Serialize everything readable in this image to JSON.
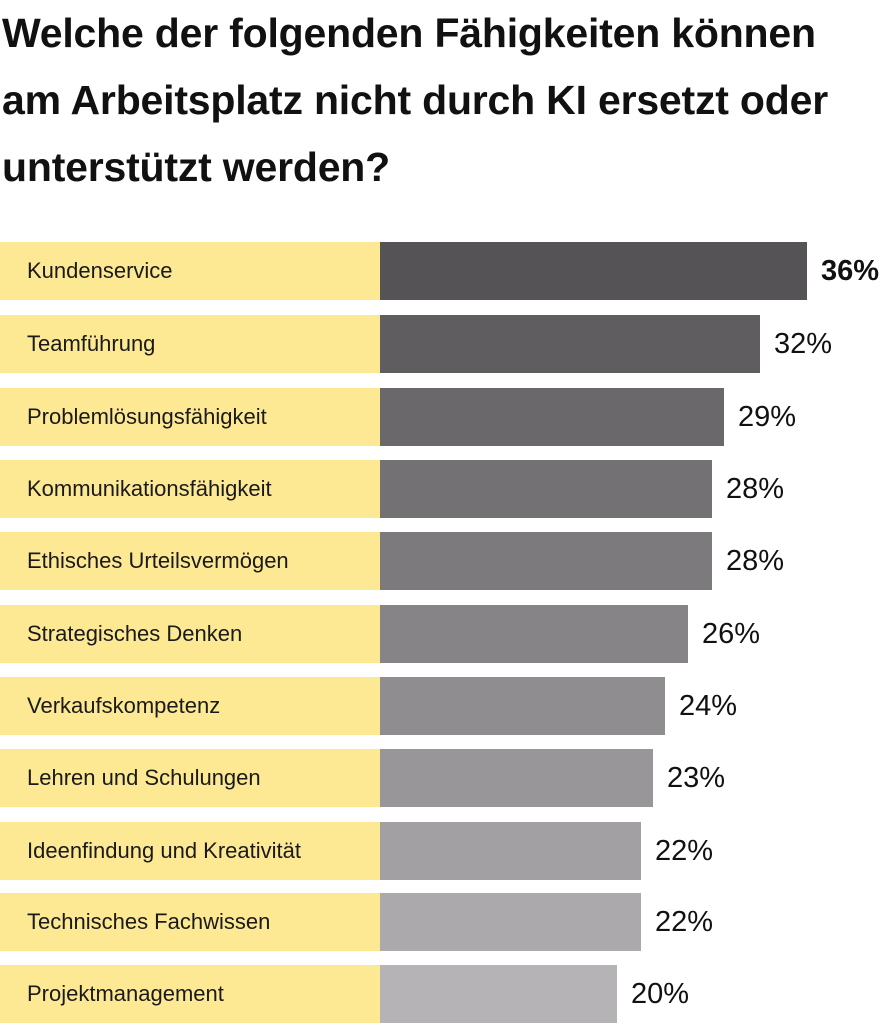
{
  "colors": {
    "label_background": "#fde894",
    "text": "#111111"
  },
  "chart_data": {
    "type": "bar",
    "orientation": "horizontal",
    "title": "Welche der folgenden Fähigkeiten können am Arbeitsplatz nicht durch KI ersetzt oder unterstützt werden?",
    "xlabel": "",
    "ylabel": "",
    "xlim": [
      0,
      36
    ],
    "grid": false,
    "categories": [
      "Kundenservice",
      "Teamführung",
      "Problemlösungsfähigkeit",
      "Kommunikationsfähigkeit",
      "Ethisches Urteilsvermögen",
      "Strategisches Denken",
      "Verkaufskompetenz",
      "Lehren und Schulungen",
      "Ideenfindung und Kreativität",
      "Technisches Fachwissen",
      "Projektmanagement"
    ],
    "values": [
      36,
      32,
      29,
      28,
      28,
      26,
      24,
      23,
      22,
      22,
      20
    ],
    "value_labels": [
      "36%",
      "32%",
      "29%",
      "28%",
      "28%",
      "26%",
      "24%",
      "23%",
      "22%",
      "22%",
      "20%"
    ],
    "bar_colors": [
      "#555355",
      "#5f5d5f",
      "#6a686a",
      "#737173",
      "#7c7a7c",
      "#868486",
      "#8f8d8f",
      "#989698",
      "#a2a0a2",
      "#aba9ab",
      "#b5b3b5"
    ]
  }
}
